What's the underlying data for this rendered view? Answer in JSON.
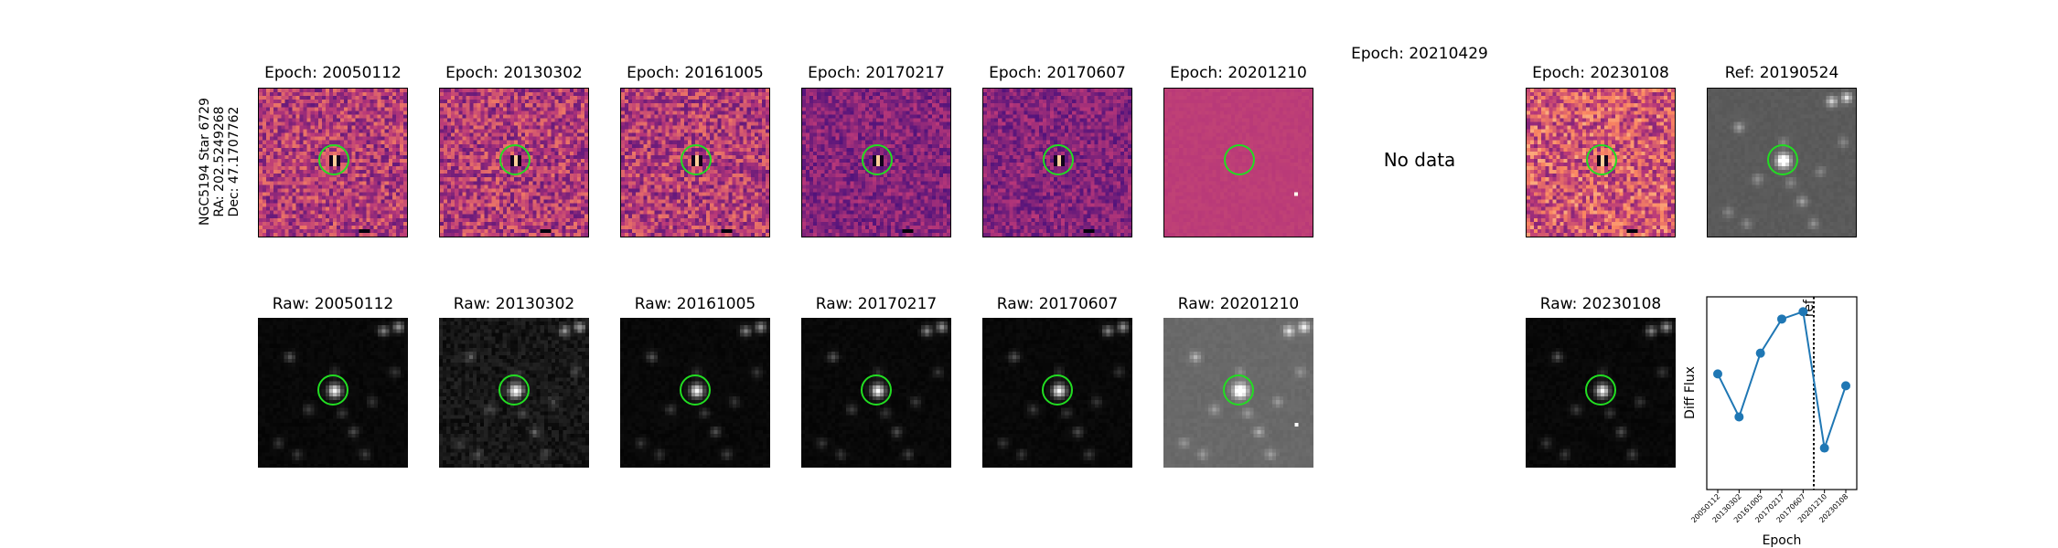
{
  "star_label": [
    "NGC5194 Star 6729",
    "RA: 202.5249268",
    "Dec: 47.1707762"
  ],
  "diff_titles": [
    "Epoch: 20050112",
    "Epoch: 20130302",
    "Epoch: 20161005",
    "Epoch: 20170217",
    "Epoch: 20170607",
    "Epoch: 20201210",
    "Epoch: 20210429",
    "Epoch: 20230108",
    "Ref: 20190524"
  ],
  "raw_titles": [
    "Raw: 20050112",
    "Raw: 20130302",
    "Raw: 20161005",
    "Raw: 20170217",
    "Raw: 20170607",
    "Raw: 20201210",
    "Raw: 20230108"
  ],
  "no_data_text": "No data",
  "colors": {
    "ring": "#22dd22",
    "line": "#1f77b4"
  },
  "chart_data": {
    "type": "line",
    "xlabel": "Epoch",
    "ylabel": "Diff Flux",
    "categories": [
      "20050112",
      "20130302",
      "20161005",
      "20170217",
      "20170607",
      "20201210",
      "20230108"
    ],
    "values": [
      0.58,
      0.29,
      0.72,
      0.95,
      1.0,
      0.08,
      0.5
    ],
    "ylim": [
      -0.2,
      1.1
    ],
    "ref_label": "ref",
    "ref_position_between": [
      "20170607",
      "20201210"
    ],
    "grid": false
  }
}
